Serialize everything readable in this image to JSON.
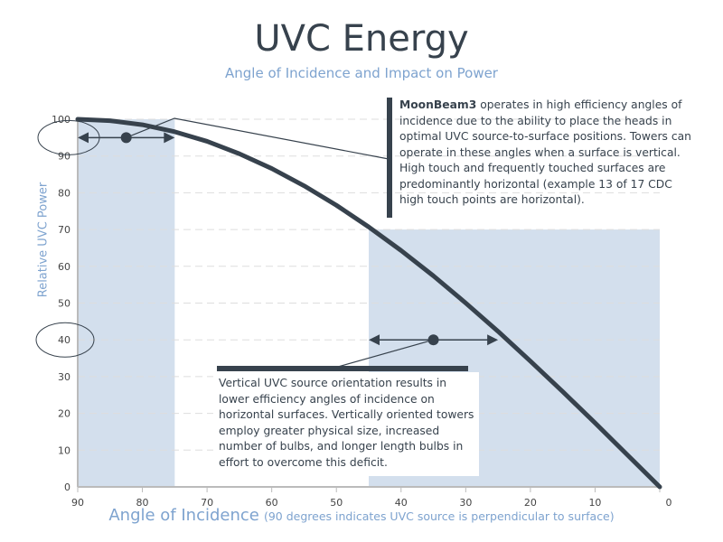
{
  "chart_data": {
    "type": "line",
    "title": "UVC Energy",
    "subtitle": "Angle of Incidence and Impact on Power",
    "xlabel": "Angle of Incidence",
    "xlabel_note": "(90 degrees indicates UVC source is perpendicular to surface)",
    "ylabel": "Relative UVC Power",
    "xlim": [
      90,
      0
    ],
    "ylim": [
      0,
      100
    ],
    "xticks": [
      90,
      80,
      70,
      60,
      50,
      40,
      30,
      20,
      10,
      0
    ],
    "yticks": [
      0,
      10,
      20,
      30,
      40,
      50,
      60,
      70,
      80,
      90,
      100
    ],
    "grid": true,
    "series": [
      {
        "name": "Relative UVC Power",
        "x": [
          90,
          85,
          80,
          75,
          70,
          65,
          60,
          55,
          50,
          45,
          40,
          35,
          30,
          25,
          20,
          15,
          10,
          5,
          0
        ],
        "y": [
          100,
          99.6,
          98.5,
          96.6,
          94,
          90.6,
          86.6,
          81.9,
          76.6,
          70.7,
          64.3,
          57.4,
          50,
          42.3,
          34.2,
          25.9,
          17.4,
          8.7,
          0
        ]
      }
    ],
    "shaded_regions": [
      {
        "x": [
          90,
          75
        ],
        "y": [
          0,
          100
        ]
      },
      {
        "x": [
          45,
          0
        ],
        "y": [
          0,
          70
        ]
      }
    ],
    "ranges": [
      {
        "from": 90,
        "to": 75,
        "center": 82.5,
        "y": 95
      },
      {
        "from": 45,
        "to": 25,
        "center": 35,
        "y": 40
      }
    ],
    "annotations": {
      "high_bold": "MoonBeam3",
      "high_text": " operates in high efficiency angles of incidence due to the ability to place the heads in optimal UVC source-to-surface positions. Towers can operate in these angles when a surface is vertical. High touch and frequently touched surfaces are predominantly horizontal (example 13 of 17 CDC high touch points are horizontal).",
      "low_text": "Vertical UVC source orientation results in lower efficiency angles of incidence on horizontal surfaces. Vertically oriented towers employ greater physical size, increased number of bulbs, and longer length bulbs in effort to overcome this deficit."
    },
    "colors": {
      "line": "#37424d",
      "shade": "#d3dfed",
      "accent": "#7ea3cf",
      "grid": "#dddddd"
    }
  }
}
